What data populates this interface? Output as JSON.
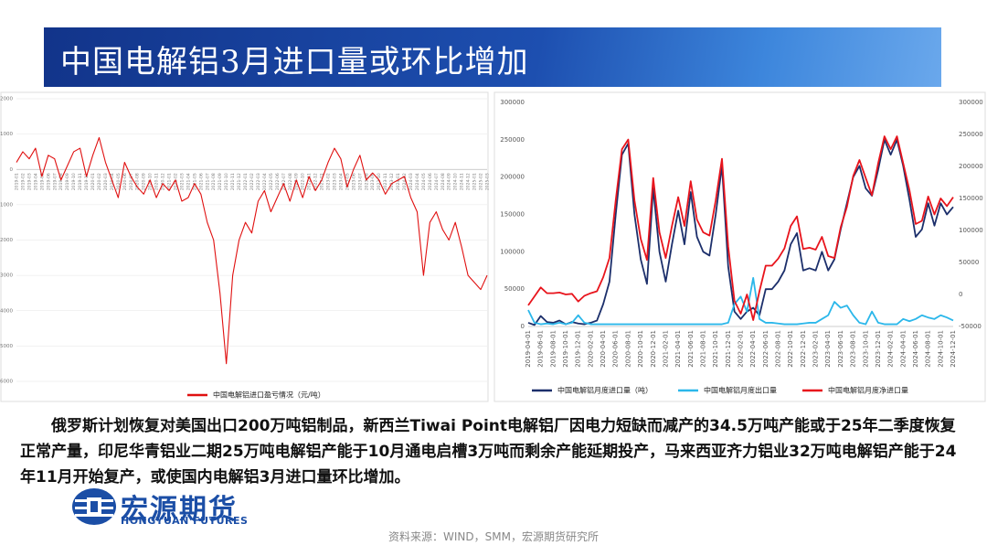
{
  "header": {
    "title": "中国电解铝3月进口量或环比增加"
  },
  "chart_data": [
    {
      "type": "line",
      "grid": true,
      "legend": "bottom",
      "categories": [
        "2019-01",
        "2019-02",
        "2019-03",
        "2019-04",
        "2019-05",
        "2019-06",
        "2019-07",
        "2019-08",
        "2019-09",
        "2019-10",
        "2019-11",
        "2019-12",
        "2020-01",
        "2020-02",
        "2020-03",
        "2020-04",
        "2020-05",
        "2020-06",
        "2020-07",
        "2020-08",
        "2020-09",
        "2020-10",
        "2020-11",
        "2020-12",
        "2021-01",
        "2021-02",
        "2021-03",
        "2021-04",
        "2021-05",
        "2021-06",
        "2021-07",
        "2021-08",
        "2021-09",
        "2021-10",
        "2021-11",
        "2021-12",
        "2022-01",
        "2022-02",
        "2022-03",
        "2022-04",
        "2022-05",
        "2022-06",
        "2022-07",
        "2022-08",
        "2022-09",
        "2022-10",
        "2022-11",
        "2022-12",
        "2023-01",
        "2023-02",
        "2023-03",
        "2023-04",
        "2023-05",
        "2023-06",
        "2023-07",
        "2023-08",
        "2023-09",
        "2023-10",
        "2023-11",
        "2023-12",
        "2024-01",
        "2024-02",
        "2024-03",
        "2024-04",
        "2024-05",
        "2024-06",
        "2024-07",
        "2024-08",
        "2024-09",
        "2024-10",
        "2024-11",
        "2024-12",
        "2025-01",
        "2025-02",
        "2025-03"
      ],
      "series": [
        {
          "name": "中国电解铝进口盈亏情况（元/吨）",
          "color": "#e01010",
          "values": [
            200,
            500,
            300,
            600,
            -200,
            400,
            300,
            -300,
            100,
            500,
            600,
            -200,
            400,
            900,
            200,
            -300,
            -800,
            200,
            -200,
            -500,
            -700,
            -300,
            -800,
            -400,
            -600,
            -300,
            -900,
            -800,
            -400,
            -700,
            -1500,
            -2000,
            -3500,
            -5500,
            -3000,
            -2000,
            -1500,
            -1800,
            -900,
            -600,
            -1200,
            -800,
            -400,
            -900,
            -300,
            -800,
            -200,
            -600,
            -300,
            200,
            600,
            300,
            -500,
            0,
            400,
            -300,
            -100,
            -300,
            -700,
            -400,
            -300,
            -200,
            -800,
            -1200,
            -3000,
            -1500,
            -1200,
            -1700,
            -2000,
            -1500,
            -2200,
            -3000,
            -3200,
            -3400,
            -3000
          ]
        }
      ],
      "ylim": [
        -6000,
        2000
      ],
      "yticks": [
        2000,
        1000,
        0,
        -1000,
        -2000,
        -3000,
        -4000,
        -5000,
        -6000
      ]
    },
    {
      "type": "line",
      "grid": false,
      "legend": "bottom",
      "categories": [
        "2019-04-01",
        null,
        "2019-06-01",
        null,
        "2019-08-01",
        null,
        "2019-10-01",
        null,
        "2019-12-01",
        null,
        "2020-02-01",
        null,
        "2020-04-01",
        null,
        "2020-06-01",
        null,
        "2020-08-01",
        null,
        "2020-10-01",
        null,
        "2020-12-01",
        null,
        "2021-02-01",
        null,
        "2021-04-01",
        null,
        "2021-06-01",
        null,
        "2021-08-01",
        null,
        "2021-10-01",
        null,
        "2021-12-01",
        null,
        "2022-02-01",
        null,
        "2022-04-01",
        null,
        "2022-06-01",
        null,
        "2022-08-01",
        null,
        "2022-10-01",
        null,
        "2022-12-01",
        null,
        "2023-02-01",
        null,
        "2023-04-01",
        null,
        "2023-06-01",
        null,
        "2023-08-01",
        null,
        "2023-10-01",
        null,
        "2023-12-01",
        null,
        "2024-02-01",
        null,
        "2024-04-01",
        null,
        "2024-06-01",
        null,
        "2024-08-01",
        null,
        "2024-10-01",
        null,
        "2024-12-01"
      ],
      "series": [
        {
          "name": "中国电解铝月度进口量（吨）",
          "color": "#1c2f6b",
          "values": [
            5000,
            2000,
            14000,
            6000,
            5000,
            8000,
            3000,
            6000,
            4000,
            3000,
            5000,
            8000,
            30000,
            60000,
            150000,
            230000,
            245000,
            150000,
            90000,
            57000,
            185000,
            100000,
            60000,
            110000,
            155000,
            110000,
            180000,
            120000,
            100000,
            95000,
            150000,
            215000,
            80000,
            20000,
            10000,
            20000,
            25000,
            15000,
            50000,
            50000,
            60000,
            75000,
            110000,
            125000,
            75000,
            78000,
            75000,
            100000,
            75000,
            90000,
            130000,
            165000,
            200000,
            215000,
            185000,
            175000,
            210000,
            250000,
            230000,
            250000,
            215000,
            170000,
            120000,
            130000,
            165000,
            135000,
            165000,
            150000,
            160000
          ]
        },
        {
          "name": "中国电解铝月度出口量",
          "color": "#2bb7ea",
          "values": [
            22000,
            5000,
            3000,
            4000,
            3000,
            5000,
            3000,
            5000,
            15000,
            5000,
            3000,
            3000,
            3000,
            3000,
            3000,
            3000,
            3000,
            3000,
            3000,
            3000,
            3000,
            3000,
            3000,
            3000,
            3000,
            3000,
            3000,
            3000,
            3000,
            3000,
            3000,
            3000,
            5000,
            30000,
            40000,
            20000,
            65000,
            10000,
            5000,
            5000,
            4000,
            3000,
            3000,
            3000,
            4000,
            5000,
            5000,
            10000,
            15000,
            33000,
            25000,
            28000,
            15000,
            5000,
            3000,
            20000,
            5000,
            3000,
            3000,
            3000,
            10000,
            7000,
            10000,
            15000,
            12000,
            10000,
            15000,
            12000,
            8000
          ]
        },
        {
          "name": "中国电解铝月度净进口量",
          "color": "#e8141c",
          "axis": "y2",
          "values": [
            -17000,
            -3000,
            11000,
            2000,
            2000,
            3000,
            0,
            1000,
            -11000,
            -2000,
            2000,
            5000,
            27000,
            57000,
            147000,
            227000,
            242000,
            147000,
            87000,
            54000,
            182000,
            97000,
            57000,
            107000,
            152000,
            107000,
            177000,
            117000,
            97000,
            92000,
            147000,
            212000,
            75000,
            -10000,
            -30000,
            0,
            -40000,
            5000,
            45000,
            45000,
            56000,
            72000,
            107000,
            122000,
            71000,
            73000,
            70000,
            90000,
            60000,
            57000,
            105000,
            137000,
            185000,
            210000,
            182000,
            155000,
            205000,
            247000,
            227000,
            247000,
            205000,
            163000,
            110000,
            115000,
            153000,
            125000,
            150000,
            138000,
            152000
          ]
        }
      ],
      "ylim": [
        0,
        300000
      ],
      "yticks": [
        0,
        50000,
        100000,
        150000,
        200000,
        250000,
        300000
      ],
      "y2lim": [
        -50000,
        300000
      ],
      "y2ticks": [
        -50000,
        0,
        50000,
        100000,
        150000,
        200000,
        250000,
        300000
      ]
    }
  ],
  "body": {
    "text": "俄罗斯计划恢复对美国出口200万吨铝制品，新西兰Tiwai Point电解铝厂因电力短缺而减产的34.5万吨产能或于25年二季度恢复正常产量，印尼华青铝业二期25万吨电解铝产能于10月通电启槽3万吨而剩余产能延期投产，马来西亚齐力铝业32万吨电解铝产能于24年11月开始复产，或使国内电解铝3月进口量环比增加。"
  },
  "logo": {
    "name": "宏源期货",
    "name_en": "HONGYUAN FUTURES"
  },
  "source": "资料来源：WIND，SMM，宏源期货研究所"
}
